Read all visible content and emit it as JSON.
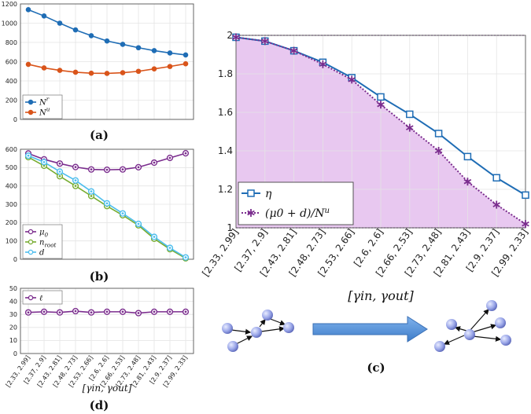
{
  "categories": [
    "[2.33, 2.99]",
    "[2.37, 2.9]",
    "[2.43, 2.81]",
    "[2.48, 2.73]",
    "[2.53, 2.66]",
    "[2.6, 2.6]",
    "[2.66, 2.53]",
    "[2.73, 2.48]",
    "[2.81, 2.43]",
    "[2.9, 2.37]",
    "[2.99, 2.33]"
  ],
  "chart_data": [
    {
      "id": "a",
      "type": "line",
      "caption": "(a)",
      "ylim": [
        0,
        1200
      ],
      "yticks": [
        0,
        200,
        400,
        600,
        800,
        1000,
        1200
      ],
      "legend": "bottom-left",
      "series": [
        {
          "name": "N",
          "sup": "r",
          "color": "#1f6db5",
          "values": [
            1140,
            1075,
            1000,
            930,
            870,
            815,
            780,
            745,
            715,
            690,
            670
          ]
        },
        {
          "name": "N",
          "sup": "u",
          "color": "#d9541a",
          "values": [
            572,
            535,
            510,
            490,
            480,
            478,
            485,
            500,
            525,
            550,
            578
          ]
        }
      ]
    },
    {
      "id": "b",
      "type": "line",
      "caption": "(b)",
      "ylim": [
        0,
        600
      ],
      "yticks": [
        0,
        100,
        200,
        300,
        400,
        500,
        600
      ],
      "legend": "bottom-left",
      "series": [
        {
          "name": "μ",
          "sub": "0",
          "color": "#7b2d8e",
          "values": [
            577,
            545,
            522,
            503,
            490,
            488,
            490,
            502,
            527,
            553,
            578
          ]
        },
        {
          "name": "n",
          "sub": "root",
          "color": "#77ac30",
          "values": [
            557,
            510,
            453,
            400,
            345,
            290,
            240,
            185,
            112,
            55,
            5
          ]
        },
        {
          "name": "d",
          "color": "#4dbeee",
          "values": [
            565,
            530,
            478,
            430,
            370,
            305,
            250,
            193,
            122,
            62,
            10
          ]
        }
      ]
    },
    {
      "id": "d",
      "type": "line",
      "caption": "(d)",
      "ylim": [
        0,
        50
      ],
      "yticks": [
        0,
        10,
        20,
        30,
        40,
        50
      ],
      "legend": "top-left",
      "xlabel": "[γin, γout]",
      "series": [
        {
          "name": "ℓ",
          "color": "#7b2d8e",
          "values": [
            31.5,
            32,
            31.5,
            32.5,
            31.5,
            32,
            32,
            31,
            32,
            32,
            32
          ]
        }
      ]
    },
    {
      "id": "c",
      "type": "line",
      "caption": "(c)",
      "ylim": [
        1,
        2
      ],
      "yticks": [
        1,
        1.2,
        1.4,
        1.6,
        1.8,
        2
      ],
      "xlabel": "[γin, γout]",
      "legend": "bottom-left",
      "series": [
        {
          "name": "η",
          "color": "#1f6db5",
          "marker": "square",
          "values": [
            1.99,
            1.97,
            1.92,
            1.86,
            1.78,
            1.68,
            1.59,
            1.49,
            1.37,
            1.26,
            1.17
          ]
        },
        {
          "name": "(μ0 + d)/N",
          "sup": "u",
          "color": "#7b2d8e",
          "marker": "star",
          "dotted": true,
          "values": [
            1.99,
            1.97,
            1.92,
            1.85,
            1.77,
            1.64,
            1.52,
            1.4,
            1.24,
            1.12,
            1.02
          ]
        }
      ]
    }
  ]
}
